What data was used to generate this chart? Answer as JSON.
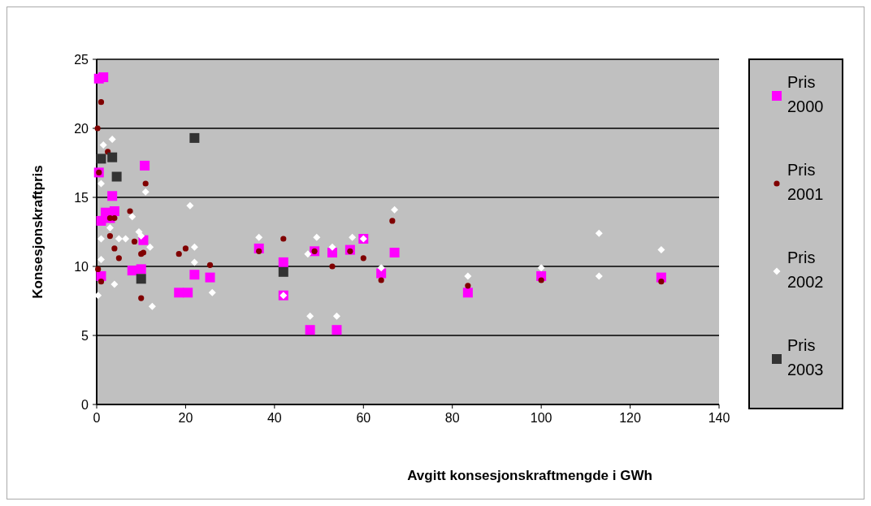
{
  "chart_data": {
    "type": "scatter",
    "xlabel": "Avgitt konsesjonskraftmengde i GWh",
    "ylabel": "Konsesjonskraftpris",
    "xlim": [
      0,
      140
    ],
    "xticks": [
      0,
      20,
      40,
      60,
      80,
      100,
      120,
      140
    ],
    "ylim": [
      0,
      25
    ],
    "yticks": [
      0,
      5,
      10,
      15,
      20,
      25
    ],
    "grid": "y",
    "legend": "right",
    "series": [
      {
        "name": "Pris 2000",
        "color": "#ff00ff",
        "marker": "square",
        "x": [
          0.5,
          1.5,
          0.5,
          1,
          2,
          3.5,
          4,
          3,
          10.8,
          1,
          8,
          10.5,
          10,
          18.5,
          20.5,
          22,
          25.5,
          36.5,
          42,
          42,
          48,
          49,
          53,
          54,
          57,
          60,
          64,
          67,
          83.5,
          100,
          127
        ],
        "values": [
          23.6,
          23.7,
          16.8,
          13.3,
          13.9,
          15.1,
          14,
          13.5,
          17.3,
          9.3,
          9.7,
          11.9,
          9.8,
          8.1,
          8.1,
          9.4,
          9.2,
          11.3,
          10.3,
          7.9,
          5.4,
          11.1,
          11,
          5.4,
          11.2,
          12,
          9.5,
          11,
          8.1,
          9.3,
          9.2
        ]
      },
      {
        "name": "Pris 2001",
        "color": "#800000",
        "marker": "circle",
        "x": [
          0.2,
          1,
          0.3,
          1,
          0.5,
          2.5,
          3,
          3,
          4,
          4,
          5,
          7.5,
          8.5,
          10,
          10,
          10.5,
          11,
          18.5,
          20,
          25.5,
          36.5,
          42,
          49,
          53,
          57,
          60,
          64,
          66.5,
          83.5,
          100,
          127
        ],
        "values": [
          20,
          21.9,
          9.8,
          8.9,
          16.8,
          18.3,
          12.2,
          13.5,
          13.5,
          11.3,
          10.6,
          14,
          11.8,
          10.9,
          7.7,
          11,
          16,
          10.9,
          11.3,
          10.1,
          11.1,
          12,
          11.1,
          10,
          11.1,
          10.6,
          9,
          13.3,
          8.6,
          9,
          8.9
        ]
      },
      {
        "name": "Pris 2002",
        "color": "#ffffff",
        "marker": "diamond",
        "x": [
          0.3,
          1,
          1,
          1.5,
          1,
          3.5,
          3,
          4,
          5,
          6.5,
          8,
          9.5,
          10,
          11,
          12,
          12.5,
          21,
          22,
          22,
          26,
          36.5,
          42,
          47.5,
          48,
          49.5,
          53,
          54,
          57.5,
          60,
          64,
          67,
          83.5,
          100,
          113,
          113,
          127
        ],
        "values": [
          7.9,
          12,
          10.5,
          18.8,
          16,
          19.2,
          12.8,
          8.7,
          12,
          12,
          13.6,
          12.5,
          12.2,
          15.4,
          11.4,
          7.1,
          14.4,
          11.4,
          10.3,
          8.1,
          12.1,
          7.9,
          10.9,
          6.4,
          12.1,
          11.4,
          6.4,
          12.1,
          12,
          9.9,
          14.1,
          9.3,
          9.9,
          12.4,
          9.3,
          11.2
        ]
      },
      {
        "name": "Pris 2003",
        "color": "#333333",
        "marker": "square",
        "x": [
          1,
          3.5,
          4.5,
          22,
          10,
          42
        ],
        "values": [
          17.8,
          17.9,
          16.5,
          19.3,
          9.1,
          9.6
        ]
      }
    ]
  }
}
